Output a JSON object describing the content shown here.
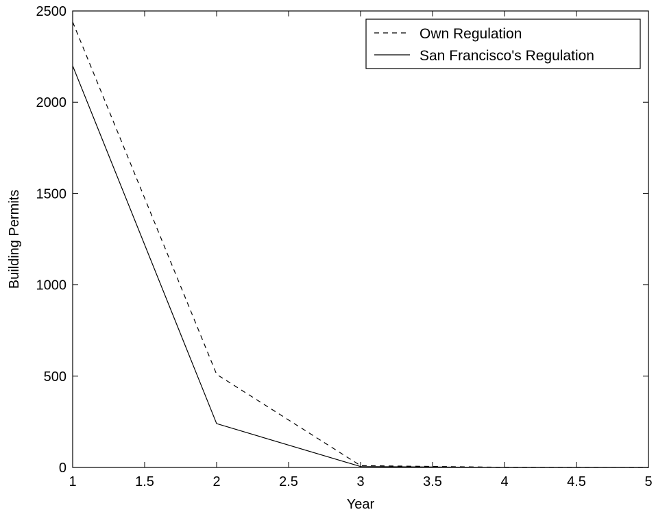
{
  "chart_data": {
    "type": "line",
    "title": "",
    "xlabel": "Year",
    "ylabel": "Building Permits",
    "xlim": [
      1,
      5
    ],
    "ylim": [
      0,
      2500
    ],
    "xticks": [
      "1",
      "1.5",
      "2",
      "2.5",
      "3",
      "3.5",
      "4",
      "4.5",
      "5"
    ],
    "yticks": [
      "0",
      "500",
      "1000",
      "1500",
      "2000",
      "2500"
    ],
    "grid": false,
    "legend_position": "top-right",
    "x": [
      1,
      2,
      3,
      4,
      5
    ],
    "series": [
      {
        "name": "Own Regulation",
        "values": [
          2440,
          510,
          10,
          1,
          0
        ],
        "style": "dashed",
        "color": "#000000"
      },
      {
        "name": "San Francisco's Regulation",
        "values": [
          2200,
          240,
          5,
          0,
          0
        ],
        "style": "solid",
        "color": "#000000"
      }
    ]
  }
}
